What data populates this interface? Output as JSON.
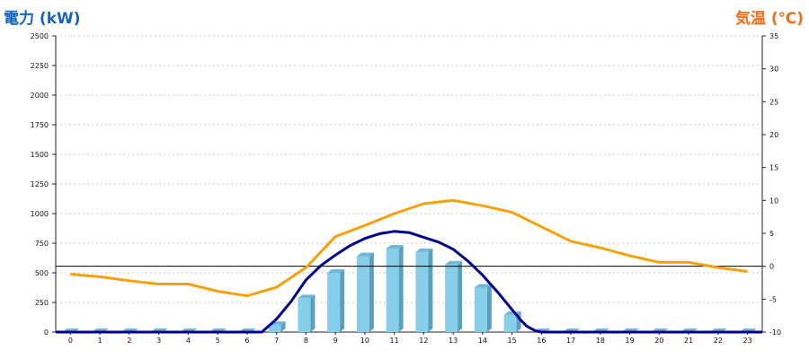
{
  "titles": {
    "left": "電力 (kW)",
    "right": "気温 (℃)"
  },
  "colors": {
    "bar_front": "#87ceeb",
    "bar_side": "#5b9fc0",
    "bar_top": "#6fb8da",
    "power_line": "#00008b",
    "temp_line": "#f5a20a",
    "left_title": "#1565c0",
    "right_title": "#ef6c1a"
  },
  "chart_data": {
    "type": "bar+line",
    "categories": [
      "0",
      "1",
      "2",
      "3",
      "4",
      "5",
      "6",
      "7",
      "8",
      "9",
      "10",
      "11",
      "12",
      "13",
      "14",
      "15",
      "16",
      "17",
      "18",
      "19",
      "20",
      "21",
      "22",
      "23"
    ],
    "bars": {
      "values": [
        0,
        0,
        0,
        0,
        0,
        0,
        0,
        60,
        285,
        500,
        640,
        705,
        675,
        570,
        375,
        145,
        0,
        0,
        0,
        0,
        0,
        0,
        0,
        0
      ],
      "axis": "left"
    },
    "power_curve": {
      "axis": "left",
      "x": [
        6.5,
        7,
        7.5,
        8,
        8.5,
        9,
        9.5,
        10,
        10.5,
        11,
        11.5,
        12,
        12.5,
        13,
        13.5,
        14,
        14.5,
        15,
        15.3,
        15.5,
        15.8,
        16
      ],
      "values": [
        0,
        110,
        260,
        440,
        560,
        650,
        730,
        790,
        830,
        850,
        840,
        800,
        760,
        700,
        600,
        480,
        340,
        190,
        100,
        50,
        10,
        0
      ]
    },
    "temperature": {
      "axis": "right",
      "values": [
        -1.2,
        -1.6,
        -2.2,
        -2.7,
        -2.7,
        -3.8,
        -4.5,
        -3.2,
        -0.2,
        4.5,
        6.2,
        8.0,
        9.5,
        10.0,
        9.2,
        8.2,
        6.0,
        3.8,
        2.8,
        1.6,
        0.6,
        0.6,
        -0.2,
        -0.8
      ]
    },
    "left_axis": {
      "min": 0,
      "max": 2500,
      "ticks": [
        0,
        250,
        500,
        750,
        1000,
        1250,
        1500,
        1750,
        2000,
        2250,
        2500
      ],
      "tick_labels": [
        "0",
        "250",
        "500",
        "750",
        "1000",
        "1250",
        "1500",
        "1750",
        "2000",
        "2250",
        "2500"
      ]
    },
    "right_axis": {
      "min": -10,
      "max": 35,
      "ticks": [
        -10,
        -5,
        0,
        5,
        10,
        15,
        20,
        25,
        30,
        35
      ],
      "tick_labels": [
        "-10",
        "-5",
        "0",
        "5",
        "10",
        "15",
        "20",
        "25",
        "30",
        "35"
      ]
    },
    "reference_line": 0,
    "grid": "horizontal-dashed"
  }
}
